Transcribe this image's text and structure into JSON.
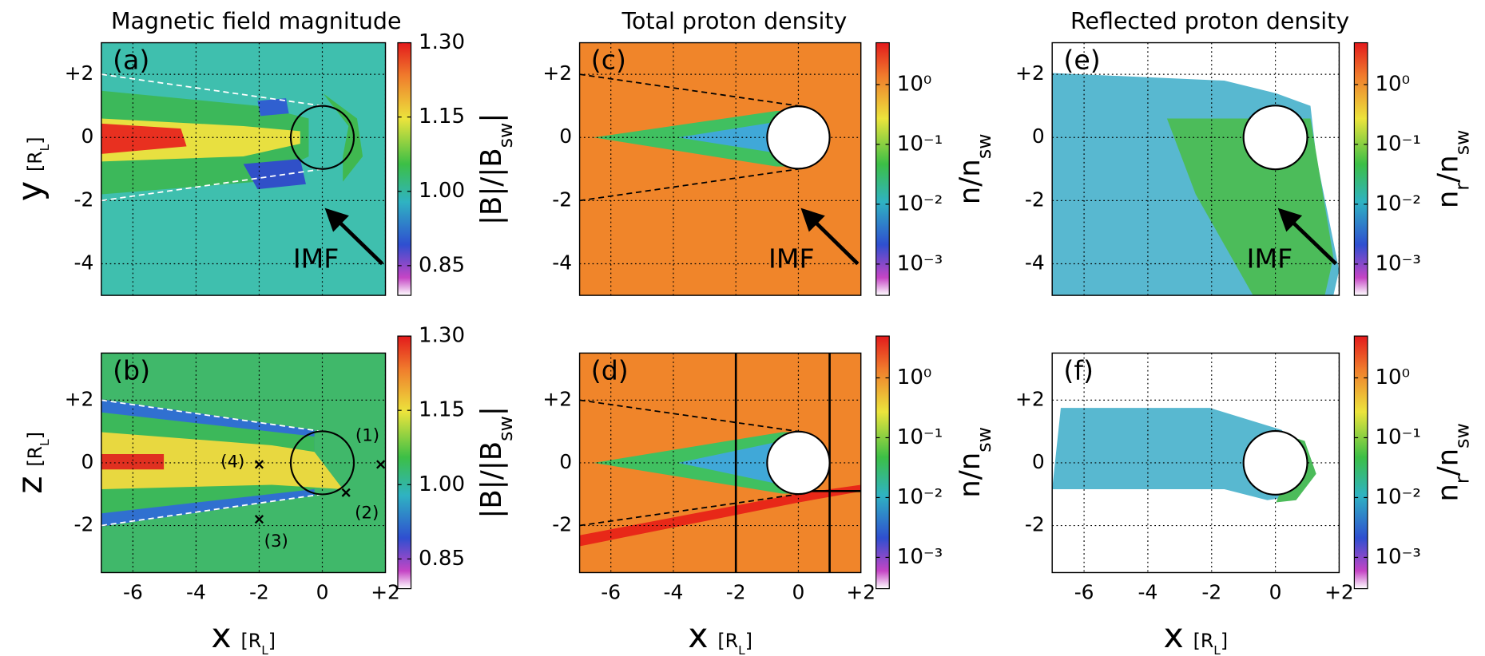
{
  "chart_data": [
    {
      "type": "heatmap",
      "title": "Magnetic field magnitude",
      "panel_label": "(a)",
      "ylabel": "y",
      "ylabel_unit": [
        "[R",
        "L",
        "]"
      ],
      "background": "#3fbfae",
      "xlim": [
        -7,
        2
      ],
      "ylim": [
        -5,
        3
      ],
      "xticks": [
        -6,
        -4,
        -2,
        0,
        2
      ],
      "show_xticklabels": false,
      "yticks": [
        {
          "value": 2,
          "label": "+2"
        },
        0,
        -2,
        -4
      ],
      "grid": true,
      "body": {
        "x": 0,
        "y": 0,
        "r": 1
      },
      "lines": [
        {
          "x": [
            -7,
            0
          ],
          "y": [
            2,
            1
          ],
          "style": "dashed",
          "color": "#ffffff"
        },
        {
          "x": [
            -7,
            0
          ],
          "y": [
            -2,
            -1
          ],
          "style": "dashed",
          "color": "#ffffff"
        }
      ],
      "arrow": {
        "text": "IMF",
        "x": [
          1.9,
          0.25
        ],
        "y": [
          -4,
          -2.4
        ]
      },
      "colorbar": {
        "lim": [
          0.79,
          1.3
        ],
        "log": false,
        "label": [
          "|B|/|B",
          "sw",
          "|"
        ],
        "ticks": [
          0.85,
          {
            "value": 1,
            "label": "1.00"
          },
          1.15,
          {
            "value": 1.3,
            "label": "1.30"
          }
        ]
      }
    },
    {
      "type": "heatmap",
      "panel_label": "(b)",
      "ylabel": "z",
      "ylabel_unit": [
        "[R",
        "L",
        "]"
      ],
      "xlabel": "x",
      "xlabel_unit": [
        "[R",
        "L",
        "]"
      ],
      "background": "#40b86a",
      "xlim": [
        -7,
        2
      ],
      "ylim": [
        -3.5,
        3.5
      ],
      "xticks": [
        -6,
        -4,
        -2,
        0,
        {
          "value": 2,
          "label": "+2"
        }
      ],
      "show_xticklabels": true,
      "yticks": [
        {
          "value": 2,
          "label": "+2"
        },
        0,
        -2
      ],
      "grid": true,
      "body": {
        "x": 0,
        "y": 0,
        "r": 1
      },
      "lines": [
        {
          "x": [
            -7,
            0
          ],
          "y": [
            2,
            1
          ],
          "style": "dashed",
          "color": "#ffffff"
        },
        {
          "x": [
            -7,
            0
          ],
          "y": [
            -2,
            -1
          ],
          "style": "dashed",
          "color": "#ffffff"
        }
      ],
      "points": [
        {
          "label": "(1)",
          "x": 1.85,
          "y": -0.05
        },
        {
          "label": "(2)",
          "x": 0.75,
          "y": -0.95
        },
        {
          "label": "(3)",
          "x": -2,
          "y": -1.8
        },
        {
          "label": "(4)",
          "x": -2,
          "y": -0.05
        }
      ],
      "colorbar": {
        "lim": [
          0.79,
          1.3
        ],
        "log": false,
        "label": [
          "|B|/|B",
          "sw",
          "|"
        ],
        "ticks": [
          0.85,
          {
            "value": 1,
            "label": "1.00"
          },
          1.15,
          {
            "value": 1.3,
            "label": "1.30"
          }
        ]
      }
    },
    {
      "type": "heatmap",
      "title": "Total proton density",
      "panel_label": "(c)",
      "background": "#f0852a",
      "xlim": [
        -7,
        2
      ],
      "ylim": [
        -5,
        3
      ],
      "xticks": [
        -6,
        -4,
        -2,
        0,
        2
      ],
      "show_xticklabels": false,
      "yticks": [
        {
          "value": 2,
          "label": "+2"
        },
        0,
        -2,
        -4
      ],
      "grid": true,
      "body": {
        "x": 0,
        "y": 0,
        "r": 1,
        "fill": "#ffffff"
      },
      "lines": [
        {
          "x": [
            -7,
            0
          ],
          "y": [
            2,
            1
          ],
          "style": "dashed",
          "color": "#000000"
        },
        {
          "x": [
            -7,
            0
          ],
          "y": [
            -2,
            -1
          ],
          "style": "dashed",
          "color": "#000000"
        }
      ],
      "arrow": {
        "text": "IMF",
        "x": [
          1.9,
          0.25
        ],
        "y": [
          -4,
          -2.4
        ]
      },
      "colorbar": {
        "lim": [
          0.0003,
          5
        ],
        "log": true,
        "label": [
          "n/n",
          "sw"
        ],
        "ticks": [
          {
            "value": 0.001,
            "label": "10⁻³"
          },
          {
            "value": 0.01,
            "label": "10⁻²"
          },
          {
            "value": 0.1,
            "label": "10⁻¹"
          },
          {
            "value": 1,
            "label": "10⁰"
          }
        ]
      }
    },
    {
      "type": "heatmap",
      "panel_label": "(d)",
      "xlabel": "x",
      "xlabel_unit": [
        "[R",
        "L",
        "]"
      ],
      "background": "#f0852a",
      "xlim": [
        -7,
        2
      ],
      "ylim": [
        -3.5,
        3.5
      ],
      "xticks": [
        -6,
        -4,
        -2,
        0,
        {
          "value": 2,
          "label": "+2"
        }
      ],
      "show_xticklabels": true,
      "yticks": [
        {
          "value": 2,
          "label": "+2"
        },
        0,
        -2
      ],
      "grid": true,
      "body": {
        "x": 0,
        "y": 0,
        "r": 1,
        "fill": "#ffffff"
      },
      "lines": [
        {
          "x": [
            -7,
            0
          ],
          "y": [
            2,
            1
          ],
          "style": "dashed",
          "color": "#000000"
        },
        {
          "x": [
            -7,
            0
          ],
          "y": [
            -2,
            -1
          ],
          "style": "dashed",
          "color": "#000000"
        },
        {
          "x": [
            -2,
            -2
          ],
          "y": [
            -3.5,
            3.5
          ],
          "style": "solid",
          "color": "#000000"
        },
        {
          "x": [
            1,
            1
          ],
          "y": [
            -3.5,
            3.5
          ],
          "style": "solid",
          "color": "#000000"
        },
        {
          "x": [
            0,
            2
          ],
          "y": [
            -0.9,
            -0.9
          ],
          "style": "solid",
          "color": "#000000"
        }
      ],
      "colorbar": {
        "lim": [
          0.0003,
          5
        ],
        "log": true,
        "label": [
          "n/n",
          "sw"
        ],
        "ticks": [
          {
            "value": 0.001,
            "label": "10⁻³"
          },
          {
            "value": 0.01,
            "label": "10⁻²"
          },
          {
            "value": 0.1,
            "label": "10⁻¹"
          },
          {
            "value": 1,
            "label": "10⁰"
          }
        ]
      }
    },
    {
      "type": "heatmap",
      "title": "Reflected proton density",
      "panel_label": "(e)",
      "background": "#ffffff",
      "xlim": [
        -7,
        2
      ],
      "ylim": [
        -5,
        3
      ],
      "xticks": [
        -6,
        -4,
        -2,
        0,
        2
      ],
      "show_xticklabels": false,
      "yticks": [
        {
          "value": 2,
          "label": "+2"
        },
        0,
        -2,
        -4
      ],
      "grid": true,
      "body": {
        "x": 0,
        "y": 0,
        "r": 1,
        "fill": "#ffffff"
      },
      "arrow": {
        "text": "IMF",
        "x": [
          1.9,
          0.25
        ],
        "y": [
          -4,
          -2.4
        ]
      },
      "colorbar": {
        "lim": [
          0.0003,
          5
        ],
        "log": true,
        "label": [
          "n",
          "r",
          "/n",
          "sw"
        ],
        "ticks": [
          {
            "value": 0.001,
            "label": "10⁻³"
          },
          {
            "value": 0.01,
            "label": "10⁻²"
          },
          {
            "value": 0.1,
            "label": "10⁻¹"
          },
          {
            "value": 1,
            "label": "10⁰"
          }
        ]
      }
    },
    {
      "type": "heatmap",
      "panel_label": "(f)",
      "xlabel": "x",
      "xlabel_unit": [
        "[R",
        "L",
        "]"
      ],
      "background": "#ffffff",
      "xlim": [
        -7,
        2
      ],
      "ylim": [
        -3.5,
        3.5
      ],
      "xticks": [
        -6,
        -4,
        -2,
        0,
        {
          "value": 2,
          "label": "+2"
        }
      ],
      "show_xticklabels": true,
      "yticks": [
        {
          "value": 2,
          "label": "+2"
        },
        0,
        -2
      ],
      "grid": true,
      "body": {
        "x": 0,
        "y": 0,
        "r": 1,
        "fill": "#ffffff"
      },
      "colorbar": {
        "lim": [
          0.0003,
          5
        ],
        "log": true,
        "label": [
          "n",
          "r",
          "/n",
          "sw"
        ],
        "ticks": [
          {
            "value": 0.001,
            "label": "10⁻³"
          },
          {
            "value": 0.01,
            "label": "10⁻²"
          },
          {
            "value": 0.1,
            "label": "10⁻¹"
          },
          {
            "value": 1,
            "label": "10⁰"
          }
        ]
      }
    }
  ]
}
